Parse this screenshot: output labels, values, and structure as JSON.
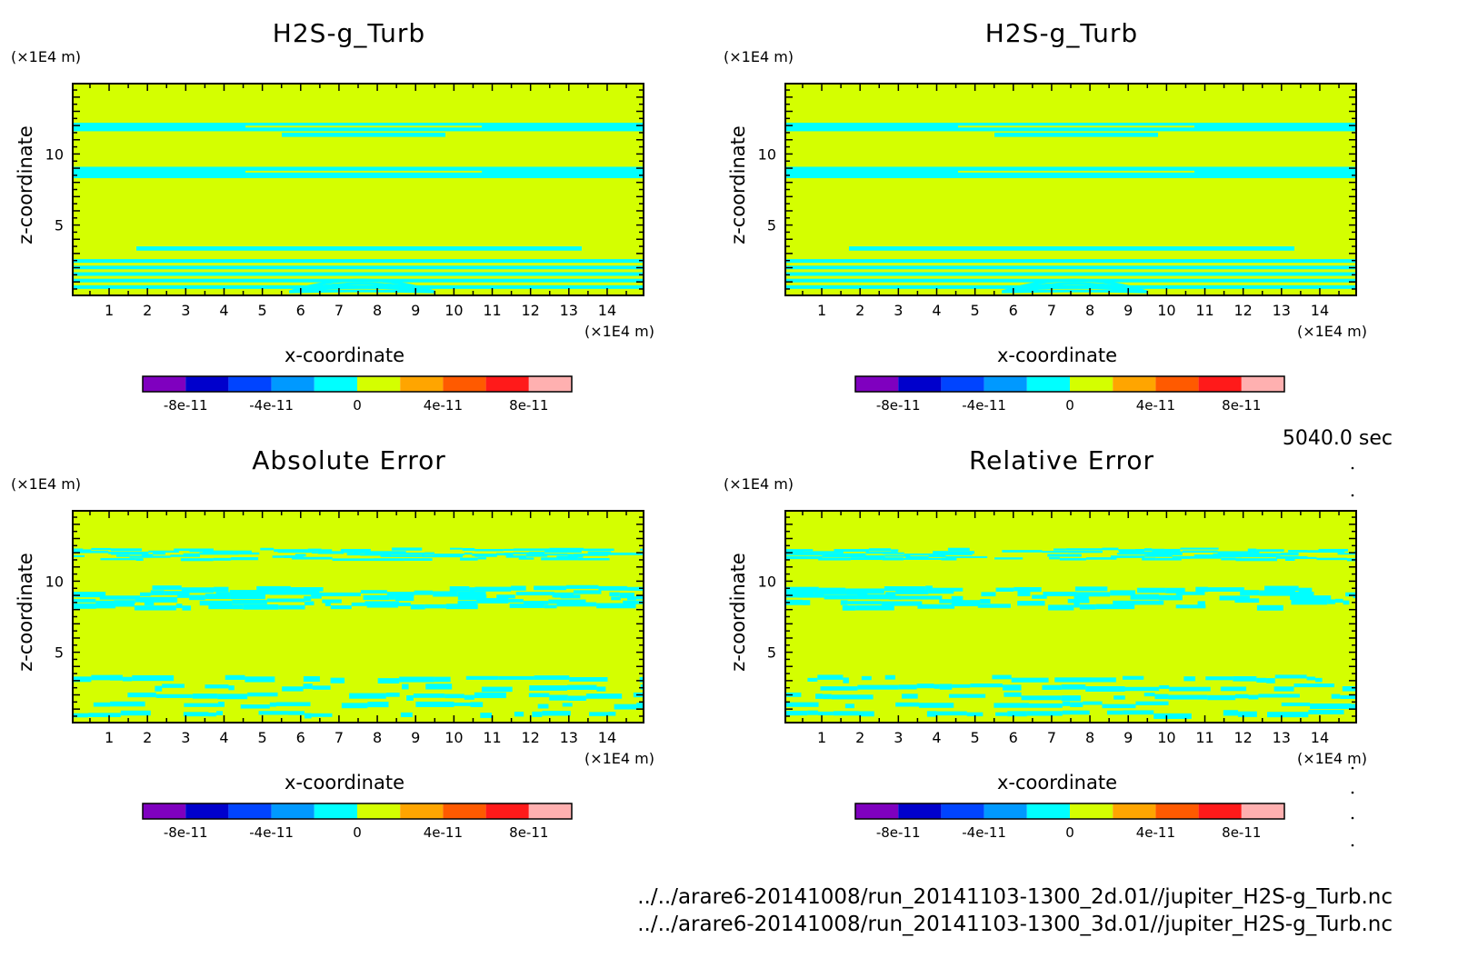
{
  "colors": {
    "background_field": "#d4ff00",
    "band": "#00ffff",
    "frame": "#000000"
  },
  "colorbar": {
    "colors": [
      "#7f00bf",
      "#0000cc",
      "#0044ff",
      "#0099ff",
      "#00ffff",
      "#d4ff00",
      "#ffa500",
      "#ff5a00",
      "#ff1a1a",
      "#ffb0b0"
    ],
    "tick_labels": [
      "-8e-11",
      "-4e-11",
      "0",
      "4e-11",
      "8e-11"
    ]
  },
  "time_label": "5040.0 sec",
  "footer": {
    "line1": "../../arare6-20141008/run_20141103-1300_2d.01//jupiter_H2S-g_Turb.nc",
    "line2": "../../arare6-20141008/run_20141103-1300_3d.01//jupiter_H2S-g_Turb.nc"
  },
  "chart_data": [
    {
      "type": "heatmap",
      "title": "H2S-g_Turb",
      "xlabel": "x-coordinate",
      "ylabel": "z-coordinate",
      "x_unit": "(×1E4 m)",
      "y_unit": "(×1E4 m)",
      "x_ticks": [
        "1",
        "2",
        "3",
        "4",
        "5",
        "6",
        "7",
        "8",
        "9",
        "10",
        "11",
        "12",
        "13",
        "14"
      ],
      "y_ticks": [
        "5",
        "10"
      ],
      "xlim": [
        0.05,
        14.95
      ],
      "ylim": [
        0.05,
        14.95
      ],
      "colorbar_range": [
        -1e-10,
        1e-10
      ],
      "description_levels": "field near 0, bands slightly negative"
    },
    {
      "type": "heatmap",
      "title": "H2S-g_Turb",
      "xlabel": "x-coordinate",
      "ylabel": "z-coordinate",
      "x_unit": "(×1E4 m)",
      "y_unit": "(×1E4 m)",
      "x_ticks": [
        "1",
        "2",
        "3",
        "4",
        "5",
        "6",
        "7",
        "8",
        "9",
        "10",
        "11",
        "12",
        "13",
        "14"
      ],
      "y_ticks": [
        "5",
        "10"
      ],
      "xlim": [
        0.05,
        14.95
      ],
      "ylim": [
        0.05,
        14.95
      ],
      "colorbar_range": [
        -1e-10,
        1e-10
      ]
    },
    {
      "type": "heatmap",
      "title": "Absolute Error",
      "xlabel": "x-coordinate",
      "ylabel": "z-coordinate",
      "x_unit": "(×1E4 m)",
      "y_unit": "(×1E4 m)",
      "x_ticks": [
        "1",
        "2",
        "3",
        "4",
        "5",
        "6",
        "7",
        "8",
        "9",
        "10",
        "11",
        "12",
        "13",
        "14"
      ],
      "y_ticks": [
        "5",
        "10"
      ],
      "xlim": [
        0.05,
        14.95
      ],
      "ylim": [
        0.05,
        14.95
      ],
      "colorbar_range": [
        -1e-10,
        1e-10
      ]
    },
    {
      "type": "heatmap",
      "title": "Relative Error",
      "xlabel": "x-coordinate",
      "ylabel": "z-coordinate",
      "x_unit": "(×1E4 m)",
      "y_unit": "(×1E4 m)",
      "x_ticks": [
        "1",
        "2",
        "3",
        "4",
        "5",
        "6",
        "7",
        "8",
        "9",
        "10",
        "11",
        "12",
        "13",
        "14"
      ],
      "y_ticks": [
        "5",
        "10"
      ],
      "xlim": [
        0.05,
        14.95
      ],
      "ylim": [
        0.05,
        14.95
      ],
      "colorbar_range": [
        -1e-10,
        1e-10
      ]
    }
  ]
}
